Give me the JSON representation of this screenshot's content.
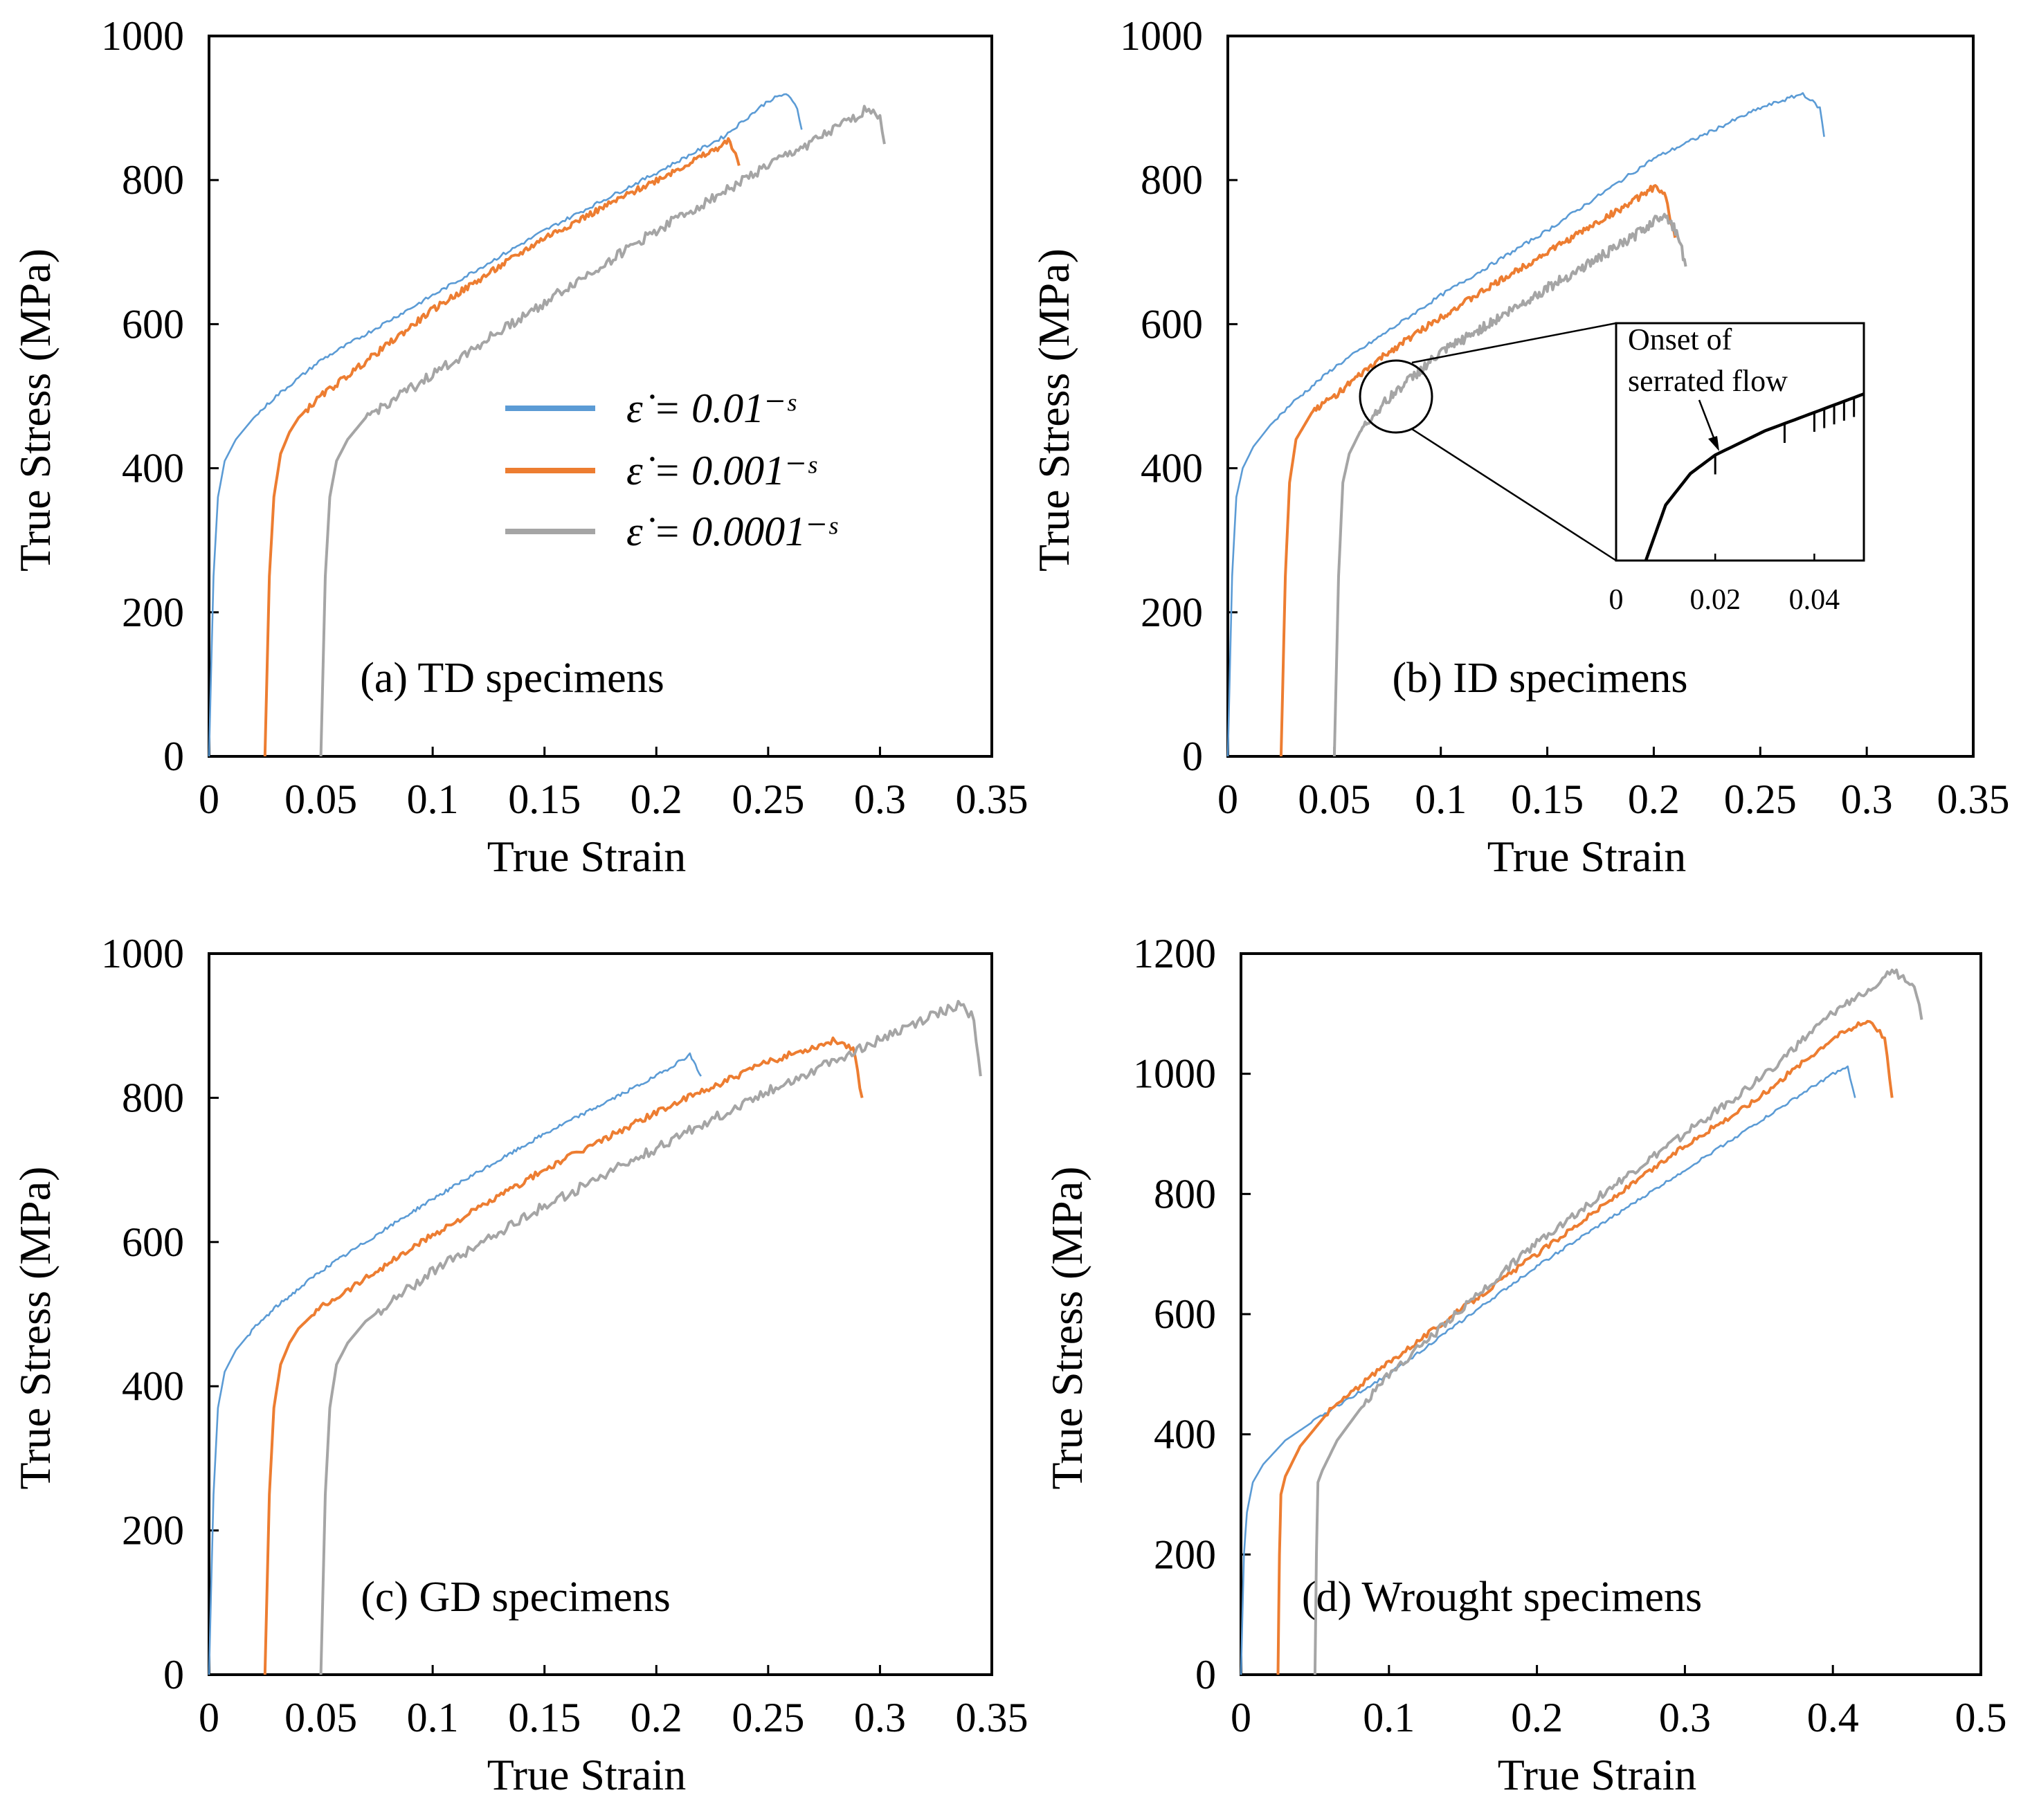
{
  "figure": {
    "legend": {
      "entries": [
        {
          "label": "ε̇ = 0.01⁻ˢ",
          "color": "#5b9bd5"
        },
        {
          "label": "ε̇ = 0.001⁻ˢ",
          "color": "#ed7d31"
        },
        {
          "label": "ε̇ = 0.0001⁻ˢ",
          "color": "#a5a5a5"
        }
      ]
    }
  },
  "chart_data": [
    {
      "type": "line",
      "panel": "a",
      "title": "(a) TD specimens",
      "xlabel": "True Strain",
      "ylabel": "True Stress (MPa)",
      "xlim": [
        0,
        0.35
      ],
      "ylim": [
        0,
        1000
      ],
      "xticks": [
        "0",
        "0.05",
        "0.1",
        "0.15",
        "0.2",
        "0.25",
        "0.3",
        "0.35"
      ],
      "yticks": [
        "0",
        "200",
        "400",
        "600",
        "800",
        "1000"
      ],
      "series": [
        {
          "name": "0.01 /s",
          "color": "#5b9bd5",
          "x": [
            0,
            0.002,
            0.004,
            0.007,
            0.012,
            0.02,
            0.03,
            0.05,
            0.1,
            0.15,
            0.2,
            0.23,
            0.25,
            0.258,
            0.263,
            0.265
          ],
          "y": [
            0,
            250,
            360,
            410,
            440,
            470,
            500,
            550,
            640,
            730,
            810,
            860,
            910,
            920,
            900,
            870
          ]
        },
        {
          "name": "0.001 /s",
          "color": "#ed7d31",
          "x": [
            0.025,
            0.027,
            0.029,
            0.032,
            0.036,
            0.04,
            0.05,
            0.075,
            0.1,
            0.15,
            0.2,
            0.225,
            0.233,
            0.237
          ],
          "y": [
            0,
            250,
            360,
            420,
            450,
            470,
            500,
            560,
            620,
            720,
            800,
            840,
            855,
            820
          ]
        },
        {
          "name": "0.0001 /s",
          "color": "#a5a5a5",
          "x": [
            0.05,
            0.052,
            0.054,
            0.057,
            0.062,
            0.07,
            0.1,
            0.15,
            0.2,
            0.25,
            0.28,
            0.295,
            0.3,
            0.302
          ],
          "y": [
            0,
            250,
            360,
            410,
            440,
            470,
            530,
            630,
            730,
            820,
            870,
            900,
            890,
            850
          ]
        }
      ]
    },
    {
      "type": "line",
      "panel": "b",
      "title": "(b) ID specimens",
      "xlabel": "True Strain",
      "ylabel": "True Stress (MPa)",
      "xlim": [
        0,
        0.35
      ],
      "ylim": [
        0,
        1000
      ],
      "xticks": [
        "0",
        "0.05",
        "0.1",
        "0.15",
        "0.2",
        "0.25",
        "0.3",
        "0.35"
      ],
      "yticks": [
        "0",
        "200",
        "400",
        "600",
        "800",
        "1000"
      ],
      "series": [
        {
          "name": "0.01 /s",
          "color": "#5b9bd5",
          "x": [
            0,
            0.002,
            0.004,
            0.007,
            0.012,
            0.02,
            0.03,
            0.05,
            0.1,
            0.15,
            0.2,
            0.25,
            0.27,
            0.278,
            0.28
          ],
          "y": [
            0,
            250,
            360,
            400,
            430,
            460,
            490,
            540,
            640,
            730,
            830,
            900,
            920,
            900,
            860
          ]
        },
        {
          "name": "0.001 /s",
          "color": "#ed7d31",
          "x": [
            0.025,
            0.027,
            0.029,
            0.032,
            0.036,
            0.04,
            0.05,
            0.075,
            0.1,
            0.15,
            0.19,
            0.2,
            0.205,
            0.21
          ],
          "y": [
            0,
            250,
            380,
            440,
            460,
            480,
            500,
            560,
            610,
            700,
            770,
            790,
            780,
            720
          ]
        },
        {
          "name": "0.0001 /s",
          "color": "#a5a5a5",
          "x": [
            0.05,
            0.052,
            0.054,
            0.057,
            0.062,
            0.07,
            0.08,
            0.1,
            0.15,
            0.19,
            0.205,
            0.212,
            0.215
          ],
          "y": [
            0,
            250,
            380,
            420,
            450,
            480,
            510,
            560,
            650,
            720,
            755,
            720,
            680
          ]
        }
      ],
      "inset": {
        "xlim": [
          0,
          0.05
        ],
        "xticks": [
          "0",
          "0.02",
          "0.04"
        ],
        "annotation": [
          "Onset of",
          "serrated flow"
        ],
        "x": [
          0.006,
          0.01,
          0.015,
          0.02,
          0.03,
          0.04,
          0.05
        ],
        "y": [
          0.0,
          0.3,
          0.47,
          0.57,
          0.7,
          0.8,
          0.9
        ]
      }
    },
    {
      "type": "line",
      "panel": "c",
      "title": "(c) GD specimens",
      "xlabel": "True Strain",
      "ylabel": "True Stress (MPa)",
      "xlim": [
        0,
        0.35
      ],
      "ylim": [
        0,
        1000
      ],
      "xticks": [
        "0",
        "0.05",
        "0.1",
        "0.15",
        "0.2",
        "0.25",
        "0.3",
        "0.35"
      ],
      "yticks": [
        "0",
        "200",
        "400",
        "600",
        "800",
        "1000"
      ],
      "series": [
        {
          "name": "0.01 /s",
          "color": "#5b9bd5",
          "x": [
            0,
            0.002,
            0.004,
            0.007,
            0.012,
            0.02,
            0.03,
            0.05,
            0.1,
            0.15,
            0.2,
            0.215,
            0.22
          ],
          "y": [
            0,
            250,
            370,
            420,
            450,
            480,
            510,
            560,
            660,
            750,
            830,
            860,
            830
          ]
        },
        {
          "name": "0.001 /s",
          "color": "#ed7d31",
          "x": [
            0.025,
            0.027,
            0.029,
            0.032,
            0.036,
            0.04,
            0.05,
            0.1,
            0.15,
            0.2,
            0.25,
            0.28,
            0.288,
            0.292
          ],
          "y": [
            0,
            250,
            370,
            430,
            460,
            480,
            510,
            610,
            700,
            780,
            850,
            880,
            870,
            800
          ]
        },
        {
          "name": "0.0001 /s",
          "color": "#a5a5a5",
          "x": [
            0.05,
            0.052,
            0.054,
            0.057,
            0.062,
            0.07,
            0.1,
            0.15,
            0.2,
            0.25,
            0.3,
            0.335,
            0.342,
            0.345
          ],
          "y": [
            0,
            250,
            370,
            430,
            460,
            490,
            560,
            650,
            730,
            810,
            880,
            930,
            910,
            830
          ]
        }
      ]
    },
    {
      "type": "line",
      "panel": "d",
      "title": "(d) Wrought specimens",
      "xlabel": "True Strain",
      "ylabel": "True Stress (MPa)",
      "xlim": [
        0,
        0.5
      ],
      "ylim": [
        0,
        1200
      ],
      "xticks": [
        "0",
        "0.1",
        "0.2",
        "0.3",
        "0.4",
        "0.5"
      ],
      "yticks": [
        "0",
        "200",
        "400",
        "600",
        "800",
        "1000",
        "1200"
      ],
      "series": [
        {
          "name": "0.01 /s",
          "color": "#5b9bd5",
          "x": [
            0,
            0.002,
            0.004,
            0.008,
            0.015,
            0.03,
            0.06,
            0.1,
            0.2,
            0.3,
            0.35,
            0.4,
            0.41,
            0.415
          ],
          "y": [
            0,
            200,
            270,
            320,
            350,
            390,
            440,
            500,
            680,
            840,
            920,
            1000,
            1010,
            960
          ]
        },
        {
          "name": "0.001 /s",
          "color": "#ed7d31",
          "x": [
            0.025,
            0.026,
            0.027,
            0.03,
            0.04,
            0.06,
            0.1,
            0.2,
            0.3,
            0.35,
            0.4,
            0.425,
            0.435,
            0.44
          ],
          "y": [
            0,
            200,
            300,
            330,
            380,
            440,
            520,
            700,
            880,
            960,
            1060,
            1090,
            1060,
            960
          ]
        },
        {
          "name": "0.0001 /s",
          "color": "#a5a5a5",
          "x": [
            0.05,
            0.051,
            0.052,
            0.055,
            0.065,
            0.08,
            0.1,
            0.2,
            0.3,
            0.35,
            0.4,
            0.44,
            0.455,
            0.46
          ],
          "y": [
            0,
            200,
            320,
            340,
            390,
            440,
            500,
            720,
            900,
            990,
            1100,
            1170,
            1150,
            1090
          ]
        }
      ]
    }
  ]
}
